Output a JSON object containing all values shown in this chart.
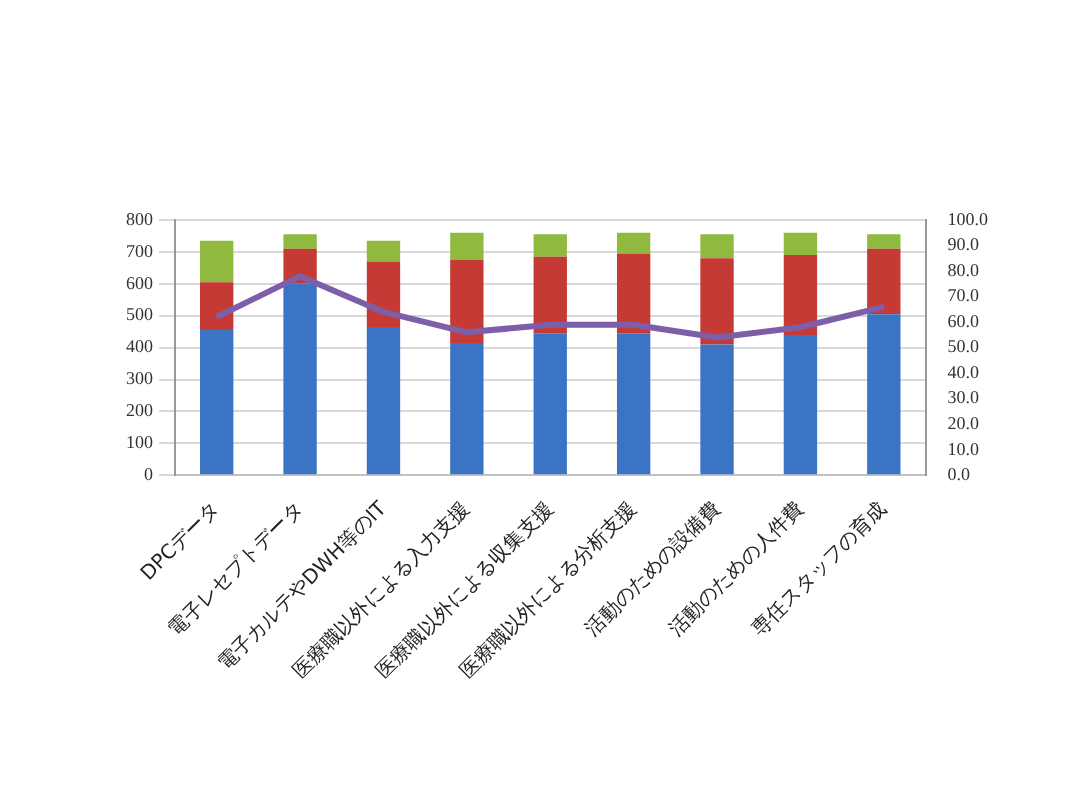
{
  "chart_data": {
    "type": "bar",
    "stacked": true,
    "categories": [
      "DPCデータ",
      "電子レセプトデータ",
      "電子カルテやDWH等のIT",
      "医療職以外による入力支援",
      "医療職以外による収集支援",
      "医療職以外による分析支援",
      "活動のための設備費",
      "活動のための人件費",
      "専任スタッフの育成"
    ],
    "series": [
      {
        "color": "#3b74c4",
        "values": [
          455,
          600,
          465,
          415,
          445,
          445,
          410,
          440,
          505
        ]
      },
      {
        "color": "#c63a35",
        "values": [
          150,
          110,
          205,
          260,
          240,
          250,
          270,
          250,
          205
        ]
      },
      {
        "color": "#8fba3f",
        "values": [
          130,
          45,
          65,
          85,
          70,
          65,
          75,
          70,
          45
        ]
      },
      {
        "type": "line",
        "axis": "y2",
        "color": "#7d5ea8",
        "values": [
          62,
          78,
          64,
          56,
          59,
          59,
          54,
          58,
          66
        ]
      }
    ],
    "ylim": [
      0,
      800
    ],
    "yticks": [
      0,
      100,
      200,
      300,
      400,
      500,
      600,
      700,
      800
    ],
    "y2lim": [
      0,
      100
    ],
    "y2ticks": [
      {
        "value": 0,
        "label": "0.0"
      },
      {
        "value": 10,
        "label": "10.0"
      },
      {
        "value": 20,
        "label": "20.0"
      },
      {
        "value": 30,
        "label": "30.0"
      },
      {
        "value": 40,
        "label": "40.0"
      },
      {
        "value": 50,
        "label": "50.0"
      },
      {
        "value": 60,
        "label": "60.0"
      },
      {
        "value": 70,
        "label": "70.0"
      },
      {
        "value": 80,
        "label": "80.0"
      },
      {
        "value": 90,
        "label": "90.0"
      },
      {
        "value": 100,
        "label": "100.0"
      }
    ],
    "grid": "y",
    "marker": "none"
  }
}
